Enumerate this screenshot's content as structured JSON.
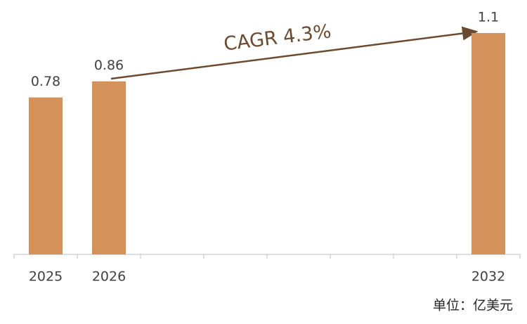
{
  "chart_data": {
    "type": "bar",
    "categories": [
      "2025",
      "2026",
      null,
      null,
      null,
      null,
      null,
      "2032"
    ],
    "values": [
      0.78,
      0.86,
      null,
      null,
      null,
      null,
      null,
      1.1
    ],
    "color": "#d4925a",
    "annotation": "CAGR 4.3%",
    "unit_label": "单位：亿美元"
  }
}
